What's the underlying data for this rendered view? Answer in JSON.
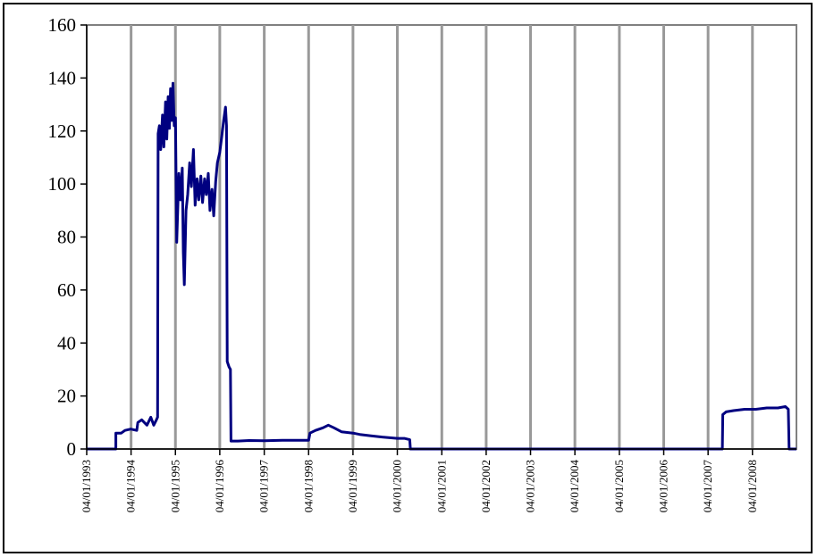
{
  "chart_data": {
    "type": "line",
    "title": "",
    "xlabel": "",
    "ylabel": "",
    "ylim": [
      0,
      160
    ],
    "yticks": [
      0,
      20,
      40,
      60,
      80,
      100,
      120,
      140,
      160
    ],
    "x_tick_labels": [
      "04/01/1993",
      "04/01/1994",
      "04/01/1995",
      "04/01/1996",
      "04/01/1997",
      "04/01/1998",
      "04/01/1999",
      "04/01/2000",
      "04/01/2001",
      "04/01/2002",
      "04/01/2003",
      "04/01/2004",
      "04/01/2005",
      "04/01/2006",
      "04/01/2007",
      "04/01/2008"
    ],
    "xlim": [
      "1993-01-04",
      "2008-12-31"
    ],
    "grid": "vertical",
    "legend": "none",
    "series": [
      {
        "color": "#000080",
        "points": [
          [
            "1993-01-04",
            0
          ],
          [
            "1993-09-01",
            0
          ],
          [
            "1993-09-01",
            6
          ],
          [
            "1993-10-15",
            6
          ],
          [
            "1993-11-15",
            7
          ],
          [
            "1994-01-01",
            7.5
          ],
          [
            "1994-02-20",
            7
          ],
          [
            "1994-03-01",
            10
          ],
          [
            "1994-04-01",
            11
          ],
          [
            "1994-05-15",
            9
          ],
          [
            "1994-06-15",
            12
          ],
          [
            "1994-07-10",
            9
          ],
          [
            "1994-08-01",
            11
          ],
          [
            "1994-08-10",
            12
          ],
          [
            "1994-08-15",
            119
          ],
          [
            "1994-08-25",
            122
          ],
          [
            "1994-09-05",
            113
          ],
          [
            "1994-09-20",
            126
          ],
          [
            "1994-10-01",
            114
          ],
          [
            "1994-10-15",
            131
          ],
          [
            "1994-10-25",
            117
          ],
          [
            "1994-11-05",
            133
          ],
          [
            "1994-11-15",
            121
          ],
          [
            "1994-11-25",
            136
          ],
          [
            "1994-12-05",
            124
          ],
          [
            "1994-12-15",
            138
          ],
          [
            "1994-12-25",
            122
          ],
          [
            "1995-01-04",
            125
          ],
          [
            "1995-01-15",
            78
          ],
          [
            "1995-02-01",
            104
          ],
          [
            "1995-02-15",
            94
          ],
          [
            "1995-03-01",
            106
          ],
          [
            "1995-03-10",
            74
          ],
          [
            "1995-03-18",
            62
          ],
          [
            "1995-04-01",
            90
          ],
          [
            "1995-04-15",
            96
          ],
          [
            "1995-05-01",
            108
          ],
          [
            "1995-05-15",
            99
          ],
          [
            "1995-06-01",
            113
          ],
          [
            "1995-06-15",
            92
          ],
          [
            "1995-07-01",
            102
          ],
          [
            "1995-07-15",
            94
          ],
          [
            "1995-08-01",
            103
          ],
          [
            "1995-08-15",
            93
          ],
          [
            "1995-09-01",
            102
          ],
          [
            "1995-09-15",
            96
          ],
          [
            "1995-10-01",
            104
          ],
          [
            "1995-10-15",
            90
          ],
          [
            "1995-11-01",
            98
          ],
          [
            "1995-11-15",
            88
          ],
          [
            "1995-12-01",
            101
          ],
          [
            "1995-12-15",
            108
          ],
          [
            "1996-01-04",
            112
          ],
          [
            "1996-01-20",
            118
          ],
          [
            "1996-02-05",
            124
          ],
          [
            "1996-02-20",
            129
          ],
          [
            "1996-02-28",
            122
          ],
          [
            "1996-03-05",
            33
          ],
          [
            "1996-03-20",
            31
          ],
          [
            "1996-04-01",
            30
          ],
          [
            "1996-04-05",
            3
          ],
          [
            "1996-06-01",
            3
          ],
          [
            "1996-09-01",
            3.2
          ],
          [
            "1997-01-04",
            3.1
          ],
          [
            "1997-06-01",
            3.3
          ],
          [
            "1998-01-04",
            3.3
          ],
          [
            "1998-01-15",
            6
          ],
          [
            "1998-03-01",
            7
          ],
          [
            "1998-05-01",
            8
          ],
          [
            "1998-06-15",
            9
          ],
          [
            "1998-08-01",
            8
          ],
          [
            "1998-10-01",
            6.5
          ],
          [
            "1999-01-04",
            6
          ],
          [
            "1999-03-01",
            5.5
          ],
          [
            "1999-06-01",
            5
          ],
          [
            "1999-09-01",
            4.5
          ],
          [
            "2000-01-04",
            4
          ],
          [
            "2000-03-01",
            4
          ],
          [
            "2000-04-15",
            3.5
          ],
          [
            "2000-04-20",
            0
          ],
          [
            "2007-05-01",
            0
          ],
          [
            "2007-05-05",
            13
          ],
          [
            "2007-06-01",
            14
          ],
          [
            "2007-08-01",
            14.5
          ],
          [
            "2007-11-01",
            15
          ],
          [
            "2008-02-01",
            15
          ],
          [
            "2008-05-01",
            15.5
          ],
          [
            "2008-08-01",
            15.5
          ],
          [
            "2008-10-01",
            16
          ],
          [
            "2008-10-25",
            15
          ],
          [
            "2008-11-01",
            0
          ],
          [
            "2008-12-31",
            0
          ]
        ]
      }
    ]
  }
}
